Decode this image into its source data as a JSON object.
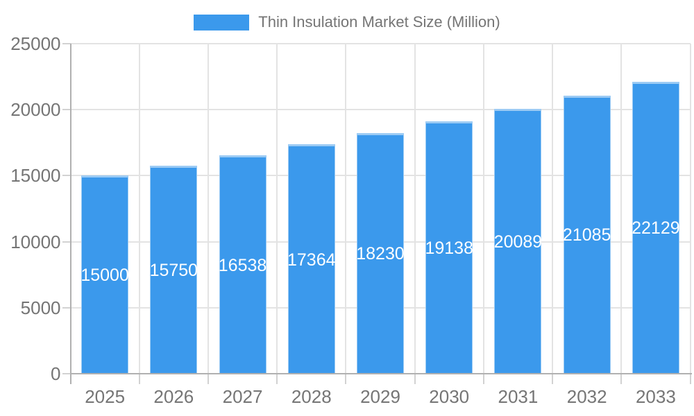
{
  "legend": {
    "label": "Thin Insulation Market Size (Million)"
  },
  "chart_data": {
    "type": "bar",
    "title": "Thin Insulation Market Size (Million)",
    "categories": [
      "2025",
      "2026",
      "2027",
      "2028",
      "2029",
      "2030",
      "2031",
      "2032",
      "2033"
    ],
    "series": [
      {
        "name": "Thin Insulation Market Size (Million)",
        "values": [
          15000,
          15750,
          16538,
          17364,
          18230,
          19138,
          20089,
          21085,
          22129
        ]
      }
    ],
    "bar_value_labels": [
      "15000",
      "15750",
      "16538",
      "17364",
      "18230",
      "19138",
      "20089",
      "21085",
      "22129"
    ],
    "xlabel": "",
    "ylabel": "",
    "ylim": [
      0,
      25000
    ],
    "yticks": [
      0,
      5000,
      10000,
      15000,
      20000,
      25000
    ],
    "grid": true,
    "legend_position": "top-center",
    "colors": {
      "bar": "#3B99EC",
      "bar_border": "#9CCBF4",
      "bar_label": "#FFFFFF",
      "grid": "#E3E3E3",
      "axis_line": "#B0B0B0",
      "tick": "#D2D2D2",
      "axis_text": "#757575"
    }
  }
}
